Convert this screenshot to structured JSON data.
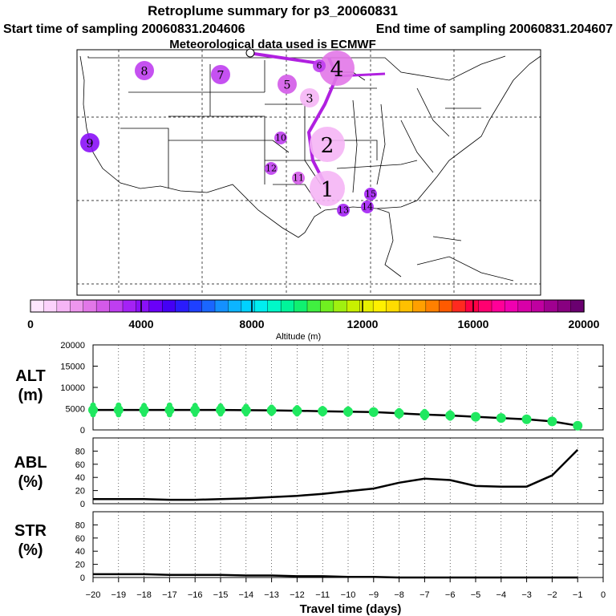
{
  "title": "Retroplume summary for p3_20060831",
  "subtitle_start": "Start time of sampling 20060831.204606",
  "subtitle_end": "End time of sampling 20060831.204607",
  "subtitle_met": "Meteorological data used is ECMWF",
  "colorbar": {
    "label": "Altitude (m)",
    "ticks": [
      "0",
      "4000",
      "8000",
      "12000",
      "16000",
      "20000"
    ],
    "colors": [
      "#ffe6ff",
      "#fcd2fc",
      "#f5b5f5",
      "#ee96ee",
      "#e277e8",
      "#d35ae8",
      "#bf3ef0",
      "#a422f5",
      "#8a10f7",
      "#6a00f8",
      "#4400f4",
      "#2a1cfb",
      "#1e40ff",
      "#1a66ff",
      "#1490ff",
      "#0cb4ff",
      "#00d2ff",
      "#00eef0",
      "#00f8c8",
      "#00f59a",
      "#10f070",
      "#40f040",
      "#70f020",
      "#a0f010",
      "#c8f000",
      "#e8f000",
      "#fff000",
      "#ffdc00",
      "#ffc000",
      "#ffa000",
      "#ff8000",
      "#ff5a00",
      "#ff2a20",
      "#ff0044",
      "#ff0070",
      "#ff0098",
      "#f000b0",
      "#d800a8",
      "#c000a0",
      "#a00090",
      "#880080",
      "#6a0070"
    ]
  },
  "map": {
    "path_color": "#b020e0",
    "points": [
      {
        "label": "1",
        "alt": 1200,
        "size": "large"
      },
      {
        "label": "2",
        "alt": 1300,
        "size": "large"
      },
      {
        "label": "3",
        "alt": 1000,
        "size": "medium"
      },
      {
        "label": "4",
        "alt": 2200,
        "size": "large"
      },
      {
        "label": "5",
        "alt": 2600,
        "size": "medium"
      },
      {
        "label": "6",
        "alt": 3300,
        "size": "small"
      },
      {
        "label": "7",
        "alt": 3000,
        "size": "medium"
      },
      {
        "label": "8",
        "alt": 3200,
        "size": "medium"
      },
      {
        "label": "9",
        "alt": 4200,
        "size": "medium"
      },
      {
        "label": "10",
        "alt": 3000,
        "size": "small"
      },
      {
        "label": "11",
        "alt": 2400,
        "size": "small"
      },
      {
        "label": "12",
        "alt": 3200,
        "size": "small"
      },
      {
        "label": "13",
        "alt": 3700,
        "size": "small"
      },
      {
        "label": "14",
        "alt": 3600,
        "size": "small"
      },
      {
        "label": "15",
        "alt": 3800,
        "size": "small"
      }
    ]
  },
  "chart_data": [
    {
      "type": "line",
      "panel": "ALT",
      "ylabel_line1": "ALT",
      "ylabel_line2": "(m)",
      "ylim": [
        0,
        20000
      ],
      "yticks": [
        "0",
        "5000",
        "10000",
        "15000",
        "20000"
      ],
      "x": [
        -20,
        -19,
        -18,
        -17,
        -16,
        -15,
        -14,
        -13,
        -12,
        -11,
        -10,
        -9,
        -8,
        -7,
        -6,
        -5,
        -4,
        -3,
        -2,
        -1
      ],
      "series": [
        {
          "name": "median altitude",
          "values": [
            4700,
            4700,
            4700,
            4700,
            4700,
            4700,
            4650,
            4600,
            4500,
            4400,
            4300,
            4200,
            3900,
            3600,
            3400,
            3100,
            2800,
            2500,
            2000,
            1000
          ]
        },
        {
          "name": "particle altitude spread (green)",
          "values": [
            5800,
            5800,
            5700,
            5800,
            5700,
            5600,
            5500,
            5300,
            5200,
            5000,
            4900,
            4700,
            4500,
            4300,
            4000,
            3500,
            3000,
            2700,
            2300,
            1400
          ]
        }
      ]
    },
    {
      "type": "line",
      "panel": "ABL",
      "ylabel_line1": "ABL",
      "ylabel_line2": "(%)",
      "ylim": [
        0,
        100
      ],
      "yticks": [
        "0",
        "20",
        "40",
        "60",
        "80"
      ],
      "x": [
        -20,
        -19,
        -18,
        -17,
        -16,
        -15,
        -14,
        -13,
        -12,
        -11,
        -10,
        -9,
        -8,
        -7,
        -6,
        -5,
        -4,
        -3,
        -2,
        -1
      ],
      "series": [
        {
          "name": "ABL fraction",
          "values": [
            7,
            7,
            7,
            6,
            6,
            7,
            8,
            10,
            12,
            15,
            19,
            23,
            32,
            38,
            36,
            27,
            26,
            26,
            43,
            82
          ]
        }
      ]
    },
    {
      "type": "line",
      "panel": "STR",
      "ylabel_line1": "STR",
      "ylabel_line2": "(%)",
      "ylim": [
        0,
        100
      ],
      "yticks": [
        "0",
        "20",
        "40",
        "60",
        "80"
      ],
      "x": [
        -20,
        -19,
        -18,
        -17,
        -16,
        -15,
        -14,
        -13,
        -12,
        -11,
        -10,
        -9,
        -8,
        -7,
        -6,
        -5,
        -4,
        -3,
        -2,
        -1
      ],
      "series": [
        {
          "name": "STR fraction",
          "values": [
            5,
            5,
            5,
            4,
            4,
            4,
            3,
            3,
            2,
            2,
            1,
            1,
            0,
            0,
            0,
            0,
            0,
            0,
            0,
            0
          ]
        }
      ]
    }
  ],
  "x_axis": {
    "xlabel": "Travel time (days)",
    "xticks": [
      "−20",
      "−19",
      "−18",
      "−17",
      "−16",
      "−15",
      "−14",
      "−13",
      "−12",
      "−11",
      "−10",
      "−9",
      "−8",
      "−7",
      "−6",
      "−5",
      "−4",
      "−3",
      "−2",
      "−1",
      "0"
    ]
  }
}
